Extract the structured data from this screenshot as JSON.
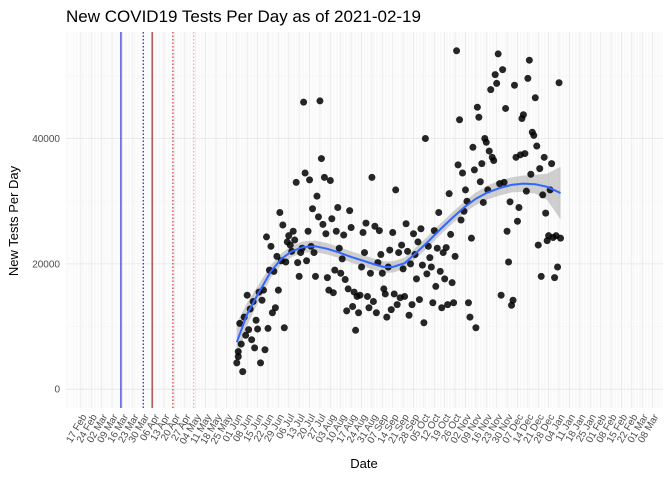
{
  "chart_data": {
    "type": "scatter",
    "title": "New COVID19 Tests Per Day as of 2021-02-19",
    "xlabel": "Date",
    "ylabel": "New Tests Per Day",
    "ylim": [
      -3000,
      57000
    ],
    "y_ticks": [
      0,
      20000,
      40000
    ],
    "y_tick_labels": [
      "0",
      "20000",
      "40000"
    ],
    "x_range_days": [
      -10,
      392
    ],
    "x_start_date": "2020-02-17",
    "x_tick_labels": [
      "17 Feb",
      "24 Feb",
      "02 Mar",
      "09 Mar",
      "16 Mar",
      "23 Mar",
      "30 Mar",
      "06 Apr",
      "13 Apr",
      "20 Apr",
      "27 Apr",
      "04 May",
      "11 May",
      "18 May",
      "25 May",
      "01 Jun",
      "08 Jun",
      "15 Jun",
      "22 Jun",
      "29 Jun",
      "06 Jul",
      "13 Jul",
      "20 Jul",
      "27 Jul",
      "03 Aug",
      "10 Aug",
      "17 Aug",
      "24 Aug",
      "31 Aug",
      "07 Sep",
      "14 Sep",
      "21 Sep",
      "28 Sep",
      "05 Oct",
      "12 Oct",
      "19 Oct",
      "26 Oct",
      "02 Nov",
      "09 Nov",
      "16 Nov",
      "23 Nov",
      "30 Nov",
      "07 Dec",
      "14 Dec",
      "21 Dec",
      "28 Dec",
      "04 Jan",
      "11 Jan",
      "18 Jan",
      "25 Jan",
      "01 Feb",
      "08 Feb",
      "15 Feb",
      "22 Feb",
      "01 Mar",
      "08 Mar"
    ],
    "vlines": [
      {
        "day": 27,
        "color": "#0000cc",
        "style": "solid"
      },
      {
        "day": 42,
        "color": "#000080",
        "style": "dotted"
      },
      {
        "day": 48,
        "color": "#8b0000",
        "style": "solid"
      },
      {
        "day": 62,
        "color": "#cc0000",
        "style": "dotted"
      },
      {
        "day": 76,
        "color": "#ff9999",
        "style": "dotted"
      }
    ],
    "point_color": "#000000",
    "smooth_color": "#3366ff",
    "ribbon_color": "#999999",
    "points": [
      [
        105,
        4200
      ],
      [
        106,
        5200
      ],
      [
        106,
        6000
      ],
      [
        107,
        10500
      ],
      [
        108,
        7200
      ],
      [
        109,
        2800
      ],
      [
        110,
        11500
      ],
      [
        111,
        8600
      ],
      [
        112,
        15000
      ],
      [
        113,
        9500
      ],
      [
        114,
        12800
      ],
      [
        115,
        7900
      ],
      [
        116,
        14000
      ],
      [
        117,
        6600
      ],
      [
        118,
        11000
      ],
      [
        119,
        9600
      ],
      [
        120,
        15500
      ],
      [
        121,
        4200
      ],
      [
        122,
        14200
      ],
      [
        123,
        15800
      ],
      [
        124,
        6300
      ],
      [
        125,
        24300
      ],
      [
        126,
        9700
      ],
      [
        127,
        19000
      ],
      [
        128,
        22800
      ],
      [
        129,
        12200
      ],
      [
        130,
        18800
      ],
      [
        131,
        13000
      ],
      [
        132,
        21200
      ],
      [
        133,
        15800
      ],
      [
        134,
        28200
      ],
      [
        135,
        20500
      ],
      [
        136,
        26200
      ],
      [
        137,
        9800
      ],
      [
        138,
        20300
      ],
      [
        139,
        23500
      ],
      [
        140,
        24500
      ],
      [
        141,
        23000
      ],
      [
        142,
        22000
      ],
      [
        143,
        25200
      ],
      [
        144,
        23800
      ],
      [
        145,
        33000
      ],
      [
        146,
        20200
      ],
      [
        147,
        18000
      ],
      [
        148,
        21800
      ],
      [
        149,
        22500
      ],
      [
        150,
        45800
      ],
      [
        151,
        34500
      ],
      [
        152,
        20500
      ],
      [
        153,
        25200
      ],
      [
        154,
        33400
      ],
      [
        155,
        22800
      ],
      [
        156,
        28800
      ],
      [
        157,
        21800
      ],
      [
        158,
        18000
      ],
      [
        159,
        30800
      ],
      [
        160,
        27500
      ],
      [
        161,
        46000
      ],
      [
        162,
        36800
      ],
      [
        163,
        26300
      ],
      [
        164,
        33800
      ],
      [
        165,
        24800
      ],
      [
        166,
        17800
      ],
      [
        167,
        15800
      ],
      [
        168,
        33300
      ],
      [
        169,
        27200
      ],
      [
        170,
        15400
      ],
      [
        171,
        19000
      ],
      [
        172,
        25200
      ],
      [
        173,
        29000
      ],
      [
        174,
        22500
      ],
      [
        175,
        18500
      ],
      [
        176,
        20800
      ],
      [
        177,
        24600
      ],
      [
        178,
        17500
      ],
      [
        179,
        12500
      ],
      [
        180,
        16000
      ],
      [
        181,
        28500
      ],
      [
        182,
        25800
      ],
      [
        183,
        13200
      ],
      [
        184,
        15500
      ],
      [
        185,
        9400
      ],
      [
        186,
        14800
      ],
      [
        187,
        12200
      ],
      [
        188,
        15000
      ],
      [
        189,
        19500
      ],
      [
        190,
        25000
      ],
      [
        191,
        21800
      ],
      [
        192,
        26500
      ],
      [
        193,
        14800
      ],
      [
        194,
        13000
      ],
      [
        195,
        18500
      ],
      [
        196,
        33800
      ],
      [
        197,
        14000
      ],
      [
        198,
        26000
      ],
      [
        199,
        12200
      ],
      [
        200,
        20200
      ],
      [
        201,
        25300
      ],
      [
        202,
        21500
      ],
      [
        203,
        18500
      ],
      [
        204,
        16000
      ],
      [
        205,
        15200
      ],
      [
        206,
        11500
      ],
      [
        207,
        19500
      ],
      [
        208,
        22200
      ],
      [
        209,
        12700
      ],
      [
        210,
        25000
      ],
      [
        211,
        15200
      ],
      [
        212,
        31800
      ],
      [
        213,
        13500
      ],
      [
        214,
        21800
      ],
      [
        215,
        14600
      ],
      [
        216,
        23000
      ],
      [
        217,
        19200
      ],
      [
        218,
        14800
      ],
      [
        219,
        26400
      ],
      [
        220,
        22000
      ],
      [
        221,
        11800
      ],
      [
        222,
        20000
      ],
      [
        223,
        13500
      ],
      [
        224,
        24800
      ],
      [
        225,
        21500
      ],
      [
        226,
        17600
      ],
      [
        227,
        23500
      ],
      [
        228,
        14300
      ],
      [
        229,
        25600
      ],
      [
        230,
        19800
      ],
      [
        231,
        10600
      ],
      [
        232,
        40000
      ],
      [
        233,
        18400
      ],
      [
        234,
        22800
      ],
      [
        235,
        21000
      ],
      [
        236,
        19500
      ],
      [
        237,
        13800
      ],
      [
        238,
        25300
      ],
      [
        239,
        16400
      ],
      [
        240,
        22500
      ],
      [
        241,
        28200
      ],
      [
        242,
        18800
      ],
      [
        243,
        13000
      ],
      [
        244,
        21800
      ],
      [
        245,
        17600
      ],
      [
        246,
        22600
      ],
      [
        247,
        13500
      ],
      [
        248,
        31200
      ],
      [
        249,
        24700
      ],
      [
        250,
        17000
      ],
      [
        251,
        13800
      ],
      [
        252,
        21200
      ],
      [
        253,
        54000
      ],
      [
        254,
        35800
      ],
      [
        255,
        43000
      ],
      [
        256,
        27000
      ],
      [
        257,
        34500
      ],
      [
        258,
        28400
      ],
      [
        259,
        31800
      ],
      [
        260,
        30000
      ],
      [
        261,
        13800
      ],
      [
        262,
        11500
      ],
      [
        263,
        24100
      ],
      [
        264,
        38600
      ],
      [
        265,
        35000
      ],
      [
        266,
        9800
      ],
      [
        267,
        45000
      ],
      [
        268,
        43400
      ],
      [
        269,
        33100
      ],
      [
        270,
        36000
      ],
      [
        271,
        29800
      ],
      [
        272,
        40000
      ],
      [
        273,
        39400
      ],
      [
        274,
        31800
      ],
      [
        275,
        38000
      ],
      [
        276,
        47800
      ],
      [
        277,
        37000
      ],
      [
        278,
        36500
      ],
      [
        279,
        50200
      ],
      [
        280,
        48800
      ],
      [
        281,
        53500
      ],
      [
        282,
        32800
      ],
      [
        283,
        15000
      ],
      [
        284,
        51000
      ],
      [
        285,
        33000
      ],
      [
        286,
        44800
      ],
      [
        287,
        25200
      ],
      [
        288,
        20300
      ],
      [
        289,
        29900
      ],
      [
        290,
        13400
      ],
      [
        291,
        14200
      ],
      [
        292,
        48500
      ],
      [
        293,
        37000
      ],
      [
        294,
        26800
      ],
      [
        295,
        29000
      ],
      [
        296,
        37400
      ],
      [
        297,
        43200
      ],
      [
        298,
        43800
      ],
      [
        299,
        37600
      ],
      [
        300,
        31600
      ],
      [
        301,
        49600
      ],
      [
        302,
        52500
      ],
      [
        303,
        34300
      ],
      [
        304,
        41000
      ],
      [
        305,
        40500
      ],
      [
        306,
        46500
      ],
      [
        307,
        38800
      ],
      [
        308,
        23000
      ],
      [
        309,
        35200
      ],
      [
        310,
        18000
      ],
      [
        311,
        31000
      ],
      [
        312,
        37000
      ],
      [
        313,
        28100
      ],
      [
        314,
        23700
      ],
      [
        315,
        24500
      ],
      [
        316,
        31800
      ],
      [
        317,
        36000
      ],
      [
        318,
        24200
      ],
      [
        319,
        17800
      ],
      [
        320,
        24500
      ],
      [
        321,
        19500
      ],
      [
        322,
        48900
      ],
      [
        323,
        24100
      ]
    ],
    "smooth_line": [
      [
        105,
        7500
      ],
      [
        112,
        12000
      ],
      [
        120,
        15500
      ],
      [
        128,
        18800
      ],
      [
        135,
        20800
      ],
      [
        142,
        22000
      ],
      [
        150,
        22700
      ],
      [
        158,
        22800
      ],
      [
        166,
        22400
      ],
      [
        174,
        21800
      ],
      [
        182,
        21100
      ],
      [
        190,
        20500
      ],
      [
        198,
        19900
      ],
      [
        204,
        19500
      ],
      [
        210,
        19500
      ],
      [
        218,
        20100
      ],
      [
        226,
        21800
      ],
      [
        234,
        23600
      ],
      [
        242,
        25500
      ],
      [
        250,
        27300
      ],
      [
        258,
        29000
      ],
      [
        266,
        30400
      ],
      [
        274,
        31400
      ],
      [
        282,
        32100
      ],
      [
        290,
        32600
      ],
      [
        298,
        32800
      ],
      [
        306,
        32700
      ],
      [
        314,
        32300
      ],
      [
        323,
        31300
      ]
    ],
    "ribbon_upper": [
      [
        105,
        10500
      ],
      [
        112,
        13800
      ],
      [
        120,
        16800
      ],
      [
        128,
        19800
      ],
      [
        135,
        21700
      ],
      [
        142,
        22900
      ],
      [
        150,
        23600
      ],
      [
        158,
        23700
      ],
      [
        166,
        23300
      ],
      [
        174,
        22700
      ],
      [
        182,
        22000
      ],
      [
        190,
        21400
      ],
      [
        198,
        20800
      ],
      [
        204,
        20400
      ],
      [
        210,
        20400
      ],
      [
        218,
        21000
      ],
      [
        226,
        22700
      ],
      [
        234,
        24500
      ],
      [
        242,
        26400
      ],
      [
        250,
        28200
      ],
      [
        258,
        29900
      ],
      [
        266,
        31400
      ],
      [
        274,
        32500
      ],
      [
        282,
        33300
      ],
      [
        290,
        33800
      ],
      [
        298,
        34100
      ],
      [
        306,
        34200
      ],
      [
        314,
        34400
      ],
      [
        323,
        35500
      ]
    ],
    "ribbon_lower": [
      [
        105,
        4500
      ],
      [
        112,
        10200
      ],
      [
        120,
        14200
      ],
      [
        128,
        17800
      ],
      [
        135,
        19900
      ],
      [
        142,
        21100
      ],
      [
        150,
        21800
      ],
      [
        158,
        21900
      ],
      [
        166,
        21500
      ],
      [
        174,
        20900
      ],
      [
        182,
        20200
      ],
      [
        190,
        19600
      ],
      [
        198,
        19000
      ],
      [
        204,
        18600
      ],
      [
        210,
        18600
      ],
      [
        218,
        19200
      ],
      [
        226,
        20900
      ],
      [
        234,
        22700
      ],
      [
        242,
        24600
      ],
      [
        250,
        26400
      ],
      [
        258,
        28100
      ],
      [
        266,
        29400
      ],
      [
        274,
        30300
      ],
      [
        282,
        30900
      ],
      [
        290,
        31400
      ],
      [
        298,
        31500
      ],
      [
        306,
        31200
      ],
      [
        314,
        30200
      ],
      [
        323,
        27100
      ]
    ]
  }
}
